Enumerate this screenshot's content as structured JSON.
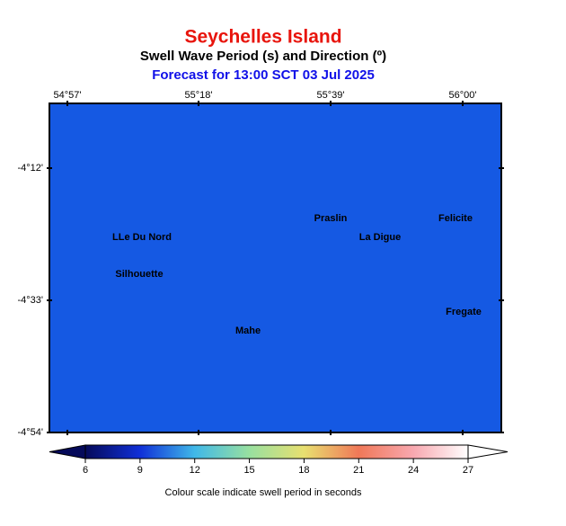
{
  "header": {
    "title": "Seychelles Island",
    "subtitle": "Swell Wave Period (s) and Direction (º)",
    "forecast": "Forecast for  13:00 SCT 03 Jul 2025"
  },
  "map": {
    "fill": "#1559e3",
    "lon_ticks": [
      "54°57'",
      "55°18'",
      "55°39'",
      "56°00'"
    ],
    "lat_ticks": [
      "-4°12'",
      "-4°33'",
      "-4°54'"
    ],
    "places": [
      "Praslin",
      "Felicite",
      "LLe Du Nord",
      "La Digue",
      "Silhouette",
      "Fregate",
      "Mahe"
    ]
  },
  "colorbar": {
    "ticks": [
      6,
      9,
      12,
      15,
      18,
      21,
      24,
      27
    ],
    "colors": [
      "#050a5a",
      "#1030d8",
      "#40b8e8",
      "#98e0a0",
      "#e8e070",
      "#f07858",
      "#f8a8b0",
      "#ffffff"
    ],
    "caption": "Colour scale indicate swell period in seconds"
  }
}
